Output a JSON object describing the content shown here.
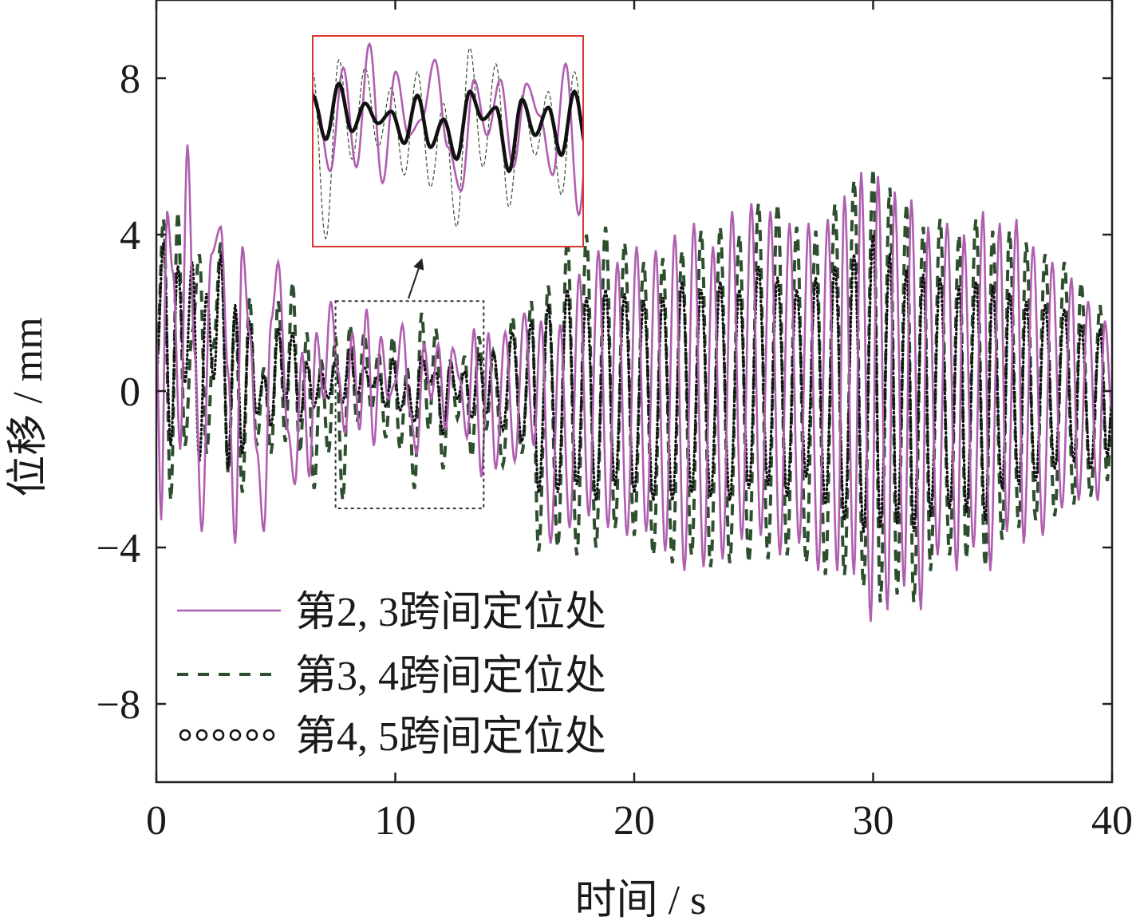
{
  "chart_data": {
    "type": "line",
    "xlabel": "时间 / s",
    "ylabel": "位移 / mm",
    "xlim": [
      0,
      40
    ],
    "ylim": [
      -10,
      10
    ],
    "xticks": [
      0,
      10,
      20,
      30,
      40
    ],
    "yticks": [
      -8,
      -4,
      0,
      4,
      8
    ],
    "ytick_labels": [
      "−8",
      "−4",
      "0",
      "4",
      "8"
    ],
    "grid": false,
    "legend_position": "bottom-left",
    "series": [
      {
        "name": "第2, 3跨间定位处",
        "style": "solid",
        "color": "#b05fb0",
        "x": [
          0,
          0.2,
          0.45,
          0.7,
          1.0,
          1.3,
          1.6,
          1.9,
          2.3,
          2.7,
          3.0,
          3.3,
          3.6,
          3.9,
          4.2,
          4.5,
          4.8,
          5.1,
          5.5,
          5.8,
          6.1,
          6.4,
          6.7,
          7.0,
          7.3,
          7.6,
          7.9,
          8.2,
          8.5,
          8.8,
          9.1,
          9.4,
          9.7,
          10.0,
          10.3,
          10.6,
          10.9,
          11.2,
          11.5,
          11.8,
          12.1,
          12.4,
          12.7,
          13.0,
          13.3,
          13.6,
          13.9,
          14.2,
          14.6,
          15.0,
          15.4,
          15.8,
          16.1,
          16.5,
          16.9,
          17.3,
          17.7,
          18.1,
          18.5,
          18.9,
          19.3,
          19.7,
          20.1,
          20.5,
          20.9,
          21.3,
          21.7,
          22.1,
          22.5,
          22.9,
          23.3,
          23.7,
          24.1,
          24.5,
          24.9,
          25.3,
          25.7,
          26.1,
          26.5,
          26.9,
          27.3,
          27.7,
          28.1,
          28.5,
          28.8,
          29.2,
          29.5,
          29.9,
          30.2,
          30.6,
          30.9,
          31.3,
          31.6,
          32.0,
          32.3,
          32.7,
          33.1,
          33.5,
          33.8,
          34.2,
          34.6,
          34.9,
          35.3,
          35.6,
          36.0,
          36.3,
          36.7,
          37.1,
          37.5,
          37.9,
          38.3,
          38.6,
          39.0,
          39.4,
          39.7,
          40.0
        ],
        "y": [
          1.5,
          -3.3,
          4.6,
          3.0,
          -1.5,
          6.3,
          1.0,
          -3.6,
          3.5,
          4.2,
          0.5,
          -3.9,
          3.7,
          1.5,
          -1.5,
          -3.6,
          1.8,
          3.3,
          -1.0,
          -2.4,
          1.0,
          -2.2,
          1.5,
          -0.2,
          2.3,
          0.5,
          -1.1,
          1.5,
          -1.0,
          2.1,
          -1.4,
          1.4,
          -0.2,
          0.2,
          1.7,
          -0.5,
          -1.6,
          1.2,
          -0.2,
          1.2,
          -1.0,
          1.1,
          0.3,
          -1.2,
          1.6,
          -2.2,
          1.5,
          -2.0,
          1.5,
          -1.8,
          2.0,
          -1.4,
          1.8,
          -3.9,
          1.7,
          -3.5,
          3.0,
          -3.2,
          3.6,
          -3.5,
          3.3,
          -3.7,
          3.7,
          -3.6,
          3.6,
          -4.1,
          4.0,
          -4.6,
          4.3,
          -4.5,
          3.7,
          -4.3,
          4.6,
          -3.8,
          4.8,
          -3.7,
          4.6,
          -4.2,
          4.3,
          -3.9,
          4.3,
          -4.6,
          4.4,
          -4.6,
          5.0,
          -4.7,
          5.6,
          -5.9,
          5.5,
          -5.6,
          5.1,
          -5.0,
          4.9,
          -5.6,
          4.2,
          -4.2,
          4.3,
          -4.6,
          4.0,
          -4.0,
          4.6,
          -4.6,
          4.3,
          -3.6,
          4.4,
          -3.9,
          3.7,
          -3.7,
          3.3,
          -3.0,
          2.9,
          -2.8,
          2.3,
          -2.8,
          1.8,
          -0.5
        ]
      },
      {
        "name": "第3, 4跨间定位处",
        "style": "dashed",
        "color": "#2e4f2e",
        "x": [
          0,
          0.3,
          0.6,
          0.9,
          1.2,
          1.5,
          1.8,
          2.1,
          2.4,
          2.7,
          3.0,
          3.3,
          3.6,
          3.9,
          4.2,
          4.5,
          4.8,
          5.1,
          5.4,
          5.7,
          6.0,
          6.3,
          6.6,
          6.9,
          7.2,
          7.5,
          7.8,
          8.1,
          8.4,
          8.7,
          9.0,
          9.3,
          9.6,
          9.9,
          10.2,
          10.5,
          10.8,
          11.1,
          11.4,
          11.7,
          12.0,
          12.3,
          12.6,
          12.9,
          13.2,
          13.5,
          13.8,
          14.1,
          14.5,
          14.9,
          15.3,
          15.7,
          16.0,
          16.4,
          16.8,
          17.2,
          17.6,
          18.0,
          18.4,
          18.8,
          19.2,
          19.6,
          20.0,
          20.4,
          20.8,
          21.2,
          21.6,
          22.0,
          22.4,
          22.8,
          23.2,
          23.6,
          24.0,
          24.4,
          24.8,
          25.2,
          25.6,
          26.0,
          26.4,
          26.8,
          27.2,
          27.6,
          28.0,
          28.4,
          28.8,
          29.2,
          29.6,
          30.0,
          30.3,
          30.7,
          31.0,
          31.4,
          31.7,
          32.1,
          32.4,
          32.8,
          33.2,
          33.6,
          33.9,
          34.3,
          34.7,
          35.0,
          35.4,
          35.7,
          36.1,
          36.4,
          36.8,
          37.2,
          37.6,
          38.0,
          38.4,
          38.7,
          39.1,
          39.5,
          39.8,
          40.0
        ],
        "y": [
          0.5,
          4.4,
          -2.8,
          4.6,
          -1.4,
          1.5,
          3.5,
          -1.6,
          1.2,
          3.8,
          -2.1,
          2.0,
          -2.6,
          2.4,
          -1.4,
          0.6,
          -1.6,
          2.3,
          -1.3,
          2.8,
          -1.6,
          1.5,
          -2.5,
          0.8,
          -1.6,
          1.4,
          -2.8,
          1.7,
          -0.8,
          1.5,
          -0.5,
          1.0,
          -1.2,
          1.4,
          -1.5,
          0.6,
          -2.5,
          2.0,
          -1.0,
          1.6,
          -2.0,
          0.8,
          -0.7,
          0.9,
          -1.7,
          1.4,
          -1.0,
          1.0,
          -1.9,
          1.9,
          -1.6,
          2.3,
          -4.1,
          2.7,
          -4.0,
          3.9,
          -4.2,
          4.0,
          -4.0,
          4.2,
          -3.5,
          3.8,
          -3.7,
          3.3,
          -4.2,
          3.4,
          -4.4,
          3.6,
          -4.2,
          4.1,
          -4.5,
          4.2,
          -4.4,
          4.0,
          -4.4,
          4.8,
          -4.3,
          4.8,
          -4.2,
          4.2,
          -4.4,
          4.1,
          -4.7,
          4.8,
          -4.7,
          5.4,
          -5.0,
          5.7,
          -5.4,
          5.2,
          -5.2,
          4.8,
          -5.4,
          4.2,
          -4.6,
          4.4,
          -4.2,
          4.0,
          -4.3,
          4.4,
          -4.5,
          4.1,
          -3.8,
          4.1,
          -3.5,
          3.8,
          -3.3,
          3.5,
          -3.2,
          3.3,
          -2.9,
          2.8,
          -2.7,
          2.2,
          -2.3,
          -0.2
        ]
      },
      {
        "name": "第4, 5跨间定位处",
        "style": "dotted",
        "color": "#111111",
        "x": [
          0,
          0.3,
          0.6,
          0.9,
          1.2,
          1.5,
          1.8,
          2.1,
          2.4,
          2.7,
          3.0,
          3.3,
          3.6,
          3.9,
          4.2,
          4.5,
          4.8,
          5.1,
          5.4,
          5.7,
          6.0,
          6.3,
          6.6,
          6.9,
          7.2,
          7.5,
          7.8,
          8.1,
          8.4,
          8.7,
          9.0,
          9.3,
          9.6,
          9.9,
          10.2,
          10.5,
          10.8,
          11.1,
          11.4,
          11.7,
          12.0,
          12.3,
          12.6,
          12.9,
          13.2,
          13.5,
          13.8,
          14.1,
          14.5,
          14.9,
          15.3,
          15.7,
          16.0,
          16.4,
          16.8,
          17.2,
          17.6,
          18.0,
          18.4,
          18.8,
          19.2,
          19.6,
          20.0,
          20.4,
          20.8,
          21.2,
          21.6,
          22.0,
          22.4,
          22.8,
          23.2,
          23.6,
          24.0,
          24.4,
          24.8,
          25.2,
          25.6,
          26.0,
          26.4,
          26.8,
          27.2,
          27.6,
          28.0,
          28.4,
          28.8,
          29.2,
          29.6,
          30.0,
          30.3,
          30.7,
          31.0,
          31.4,
          31.7,
          32.1,
          32.4,
          32.8,
          33.2,
          33.6,
          33.9,
          34.3,
          34.7,
          35.0,
          35.4,
          35.7,
          36.1,
          36.4,
          36.8,
          37.2,
          37.6,
          38.0,
          38.4,
          38.7,
          39.1,
          39.5,
          39.8,
          40.0
        ],
        "y": [
          0.5,
          3.8,
          -1.4,
          3.2,
          0.2,
          3.3,
          -1.8,
          2.5,
          0.3,
          3.5,
          -2.0,
          2.2,
          -1.6,
          1.8,
          -0.6,
          0.4,
          -0.9,
          1.6,
          -0.3,
          1.5,
          -0.8,
          0.7,
          -0.4,
          0.5,
          -0.2,
          0.8,
          -0.3,
          1.1,
          -0.1,
          0.6,
          0.1,
          0.4,
          -0.4,
          0.8,
          -0.5,
          0.2,
          -0.8,
          0.9,
          0.2,
          0.5,
          -1.1,
          0.7,
          -0.2,
          0.5,
          -0.7,
          0.9,
          -0.6,
          1.0,
          -1.0,
          1.5,
          -1.3,
          1.8,
          -2.6,
          2.2,
          -2.6,
          2.6,
          -2.4,
          2.4,
          -2.8,
          2.6,
          -2.4,
          2.5,
          -2.6,
          2.3,
          -2.8,
          2.4,
          -2.8,
          2.8,
          -2.6,
          2.6,
          -2.7,
          2.8,
          -2.8,
          2.6,
          -2.5,
          3.2,
          -2.4,
          2.9,
          -2.7,
          2.6,
          -2.2,
          2.9,
          -2.9,
          3.2,
          -3.3,
          3.5,
          -3.6,
          4.0,
          -3.5,
          3.5,
          -3.4,
          3.1,
          -3.6,
          3.0,
          -3.2,
          2.9,
          -3.0,
          2.7,
          -3.1,
          2.8,
          -3.3,
          2.7,
          -2.5,
          2.5,
          -2.4,
          2.3,
          -2.3,
          2.2,
          -2.0,
          2.1,
          -1.8,
          1.7,
          -2.0,
          1.6,
          -1.7,
          -0.3
        ]
      }
    ],
    "inset": {
      "source_xlim": [
        7.5,
        13.7
      ],
      "source_ylim": [
        -3.0,
        2.3
      ]
    }
  },
  "colors": {
    "inset_border": "#d9372a",
    "zoom_box": "#333333",
    "axes": "#222222"
  }
}
